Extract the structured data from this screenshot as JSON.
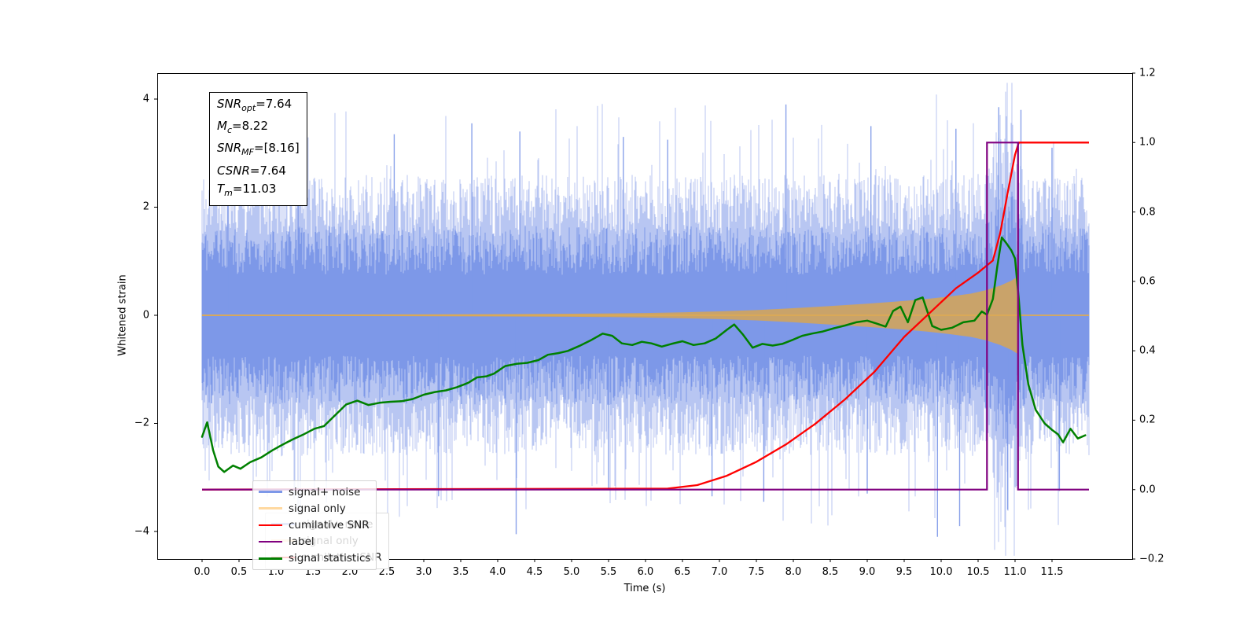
{
  "window": {
    "title": ""
  },
  "chart_data": {
    "type": "line",
    "title": "",
    "xlabel": "Time (s)",
    "ylabel": "Whitened strain",
    "ylabel_right": "",
    "grid": false,
    "xlim": [
      -0.606,
      12.585
    ],
    "ylim_left": [
      -4.51,
      4.48
    ],
    "ylim_right": [
      -0.2,
      1.2
    ],
    "x_ticks": [
      {
        "value": 0.0,
        "label": "0.0"
      },
      {
        "value": 0.5,
        "label": "0.5"
      },
      {
        "value": 1.0,
        "label": "1.0"
      },
      {
        "value": 1.5,
        "label": "1.5"
      },
      {
        "value": 2.0,
        "label": "2.0"
      },
      {
        "value": 2.5,
        "label": "2.5"
      },
      {
        "value": 3.0,
        "label": "3.0"
      },
      {
        "value": 3.5,
        "label": "3.5"
      },
      {
        "value": 4.0,
        "label": "4.0"
      },
      {
        "value": 4.5,
        "label": "4.5"
      },
      {
        "value": 5.0,
        "label": "5.0"
      },
      {
        "value": 5.5,
        "label": "5.5"
      },
      {
        "value": 6.0,
        "label": "6.0"
      },
      {
        "value": 6.5,
        "label": "6.5"
      },
      {
        "value": 7.0,
        "label": "7.0"
      },
      {
        "value": 7.5,
        "label": "7.5"
      },
      {
        "value": 8.0,
        "label": "8.0"
      },
      {
        "value": 8.5,
        "label": "8.5"
      },
      {
        "value": 9.0,
        "label": "9.0"
      },
      {
        "value": 9.5,
        "label": "9.5"
      },
      {
        "value": 10.0,
        "label": "10.0"
      },
      {
        "value": 10.5,
        "label": "10.5"
      },
      {
        "value": 11.0,
        "label": "11.0"
      },
      {
        "value": 11.5,
        "label": "11.5"
      }
    ],
    "yleft_ticks": [
      {
        "value": 4,
        "label": "4"
      },
      {
        "value": 2,
        "label": "2"
      },
      {
        "value": 0,
        "label": "0"
      },
      {
        "value": -2,
        "label": "−2"
      },
      {
        "value": -4,
        "label": "−4"
      }
    ],
    "yright_ticks": [
      {
        "value": 1.2,
        "label": "1.2"
      },
      {
        "value": 1.0,
        "label": "1.0"
      },
      {
        "value": 0.8,
        "label": "0.8"
      },
      {
        "value": 0.6,
        "label": "0.6"
      },
      {
        "value": 0.4,
        "label": "0.4"
      },
      {
        "value": 0.2,
        "label": "0.2"
      },
      {
        "value": 0.0,
        "label": "0.0"
      },
      {
        "value": -0.2,
        "label": "−0.2"
      }
    ],
    "annotation_box": {
      "lines": [
        {
          "var": "SNR",
          "sub": "opt",
          "rest": "=7.64",
          "text": "SNR_opt=7.64"
        },
        {
          "var": "M",
          "sub": "c",
          "rest": "=8.22",
          "text": "M_c=8.22"
        },
        {
          "var": "SNR",
          "sub": "MF",
          "rest": "=[8.16]",
          "text": "SNR_MF=[8.16]"
        },
        {
          "var": "CSNR",
          "sub": "",
          "rest": "=7.64",
          "text": "CSNR=7.64"
        },
        {
          "var": "T",
          "sub": "m",
          "rest": "=11.03",
          "text": "T_m=11.03"
        }
      ]
    },
    "legend": {
      "position": "lower left",
      "entries": [
        {
          "label": "signal+ noise",
          "color": "#7d98e8"
        },
        {
          "label": "signal only",
          "color": "#ffd9a0"
        },
        {
          "label": "cumilative SNR",
          "color": "#ff0000"
        },
        {
          "label": "label",
          "color": "#800080"
        },
        {
          "label": "signal statistics",
          "color": "#008000"
        }
      ]
    },
    "legend_ghost": {
      "note": "second faded legend visible behind main legend",
      "entries": [
        {
          "label": "signal+ noise",
          "color": "#7d98e8"
        },
        {
          "label": "signal only",
          "color": "#ffd9a0"
        },
        {
          "label": "cumilative SNR",
          "color": "#ff0000"
        }
      ]
    },
    "series": {
      "signal_noise": {
        "label": "signal+ noise",
        "axis": "left",
        "color": "#7d98e8",
        "kind": "dense-noise-band",
        "t_range": [
          0,
          12
        ],
        "typical_band": 2.0,
        "seed": 20240613,
        "extreme_spikes": [
          [
            0.35,
            3.1
          ],
          [
            1.3,
            3.2
          ],
          [
            2.6,
            3.35
          ],
          [
            3.2,
            -3.35
          ],
          [
            3.65,
            3.55
          ],
          [
            4.25,
            -4.05
          ],
          [
            4.3,
            3.4
          ],
          [
            5.5,
            -3.2
          ],
          [
            5.7,
            3.3
          ],
          [
            6.3,
            3.25
          ],
          [
            6.9,
            -3.35
          ],
          [
            7.6,
            -3.45
          ],
          [
            7.9,
            3.9
          ],
          [
            9.0,
            -3.3
          ],
          [
            9.05,
            3.5
          ],
          [
            9.95,
            -4.1
          ],
          [
            10.2,
            3.45
          ],
          [
            10.25,
            -3.9
          ],
          [
            10.78,
            3.85
          ],
          [
            10.9,
            -3.6
          ],
          [
            11.08,
            3.8
          ],
          [
            11.5,
            3.1
          ],
          [
            11.6,
            -3.25
          ]
        ]
      },
      "signal_only": {
        "label": "signal only",
        "axis": "left",
        "line_color": "#dpaa55-fix",
        "zero_line_color": "#ddaa55",
        "fill_color": "#c9a36a",
        "legend_color": "#ffd9a0",
        "zero_level": 0.0,
        "cutoff_t": 11.04,
        "end_t": 12.0,
        "envelope": [
          [
            0,
            0.012
          ],
          [
            1,
            0.013
          ],
          [
            2,
            0.015
          ],
          [
            3,
            0.018
          ],
          [
            4,
            0.022
          ],
          [
            5,
            0.028
          ],
          [
            5.5,
            0.034
          ],
          [
            6,
            0.042
          ],
          [
            6.5,
            0.055
          ],
          [
            7,
            0.072
          ],
          [
            7.5,
            0.095
          ],
          [
            8,
            0.13
          ],
          [
            8.5,
            0.17
          ],
          [
            9,
            0.215
          ],
          [
            9.5,
            0.265
          ],
          [
            9.8,
            0.3
          ],
          [
            10.1,
            0.345
          ],
          [
            10.4,
            0.4
          ],
          [
            10.6,
            0.46
          ],
          [
            10.8,
            0.55
          ],
          [
            10.95,
            0.64
          ],
          [
            11.02,
            0.7
          ],
          [
            11.04,
            0.71
          ]
        ]
      },
      "cumulative_snr": {
        "label": "cumilative SNR",
        "axis": "right",
        "color": "#ff0000",
        "points": [
          [
            0,
            0
          ],
          [
            6.3,
            0.003
          ],
          [
            6.7,
            0.013
          ],
          [
            7.1,
            0.04
          ],
          [
            7.5,
            0.08
          ],
          [
            7.9,
            0.13
          ],
          [
            8.3,
            0.19
          ],
          [
            8.7,
            0.26
          ],
          [
            9.1,
            0.34
          ],
          [
            9.5,
            0.44
          ],
          [
            9.9,
            0.52
          ],
          [
            10.2,
            0.58
          ],
          [
            10.5,
            0.625
          ],
          [
            10.7,
            0.66
          ],
          [
            10.8,
            0.74
          ],
          [
            10.9,
            0.855
          ],
          [
            11.0,
            0.965
          ],
          [
            11.05,
            1.0
          ],
          [
            12.0,
            1.0
          ]
        ]
      },
      "label": {
        "label": "label",
        "axis": "right",
        "color": "#800080",
        "points": [
          [
            0,
            0
          ],
          [
            10.62,
            0
          ],
          [
            10.62,
            1
          ],
          [
            11.04,
            1
          ],
          [
            11.04,
            0
          ],
          [
            12,
            0
          ]
        ]
      },
      "signal_statistics": {
        "label": "signal statistics",
        "axis": "left",
        "color": "#008000",
        "points": [
          [
            0.0,
            -2.25
          ],
          [
            0.07,
            -1.98
          ],
          [
            0.15,
            -2.5
          ],
          [
            0.22,
            -2.8
          ],
          [
            0.3,
            -2.9
          ],
          [
            0.42,
            -2.78
          ],
          [
            0.52,
            -2.84
          ],
          [
            0.65,
            -2.72
          ],
          [
            0.8,
            -2.63
          ],
          [
            0.95,
            -2.5
          ],
          [
            1.08,
            -2.4
          ],
          [
            1.22,
            -2.3
          ],
          [
            1.38,
            -2.2
          ],
          [
            1.52,
            -2.1
          ],
          [
            1.65,
            -2.05
          ],
          [
            1.8,
            -1.85
          ],
          [
            1.95,
            -1.65
          ],
          [
            2.1,
            -1.58
          ],
          [
            2.25,
            -1.66
          ],
          [
            2.4,
            -1.62
          ],
          [
            2.55,
            -1.6
          ],
          [
            2.7,
            -1.59
          ],
          [
            2.85,
            -1.55
          ],
          [
            3.0,
            -1.47
          ],
          [
            3.15,
            -1.42
          ],
          [
            3.3,
            -1.39
          ],
          [
            3.45,
            -1.33
          ],
          [
            3.6,
            -1.25
          ],
          [
            3.72,
            -1.15
          ],
          [
            3.85,
            -1.13
          ],
          [
            3.95,
            -1.08
          ],
          [
            4.1,
            -0.94
          ],
          [
            4.25,
            -0.9
          ],
          [
            4.4,
            -0.88
          ],
          [
            4.55,
            -0.83
          ],
          [
            4.68,
            -0.73
          ],
          [
            4.82,
            -0.7
          ],
          [
            4.95,
            -0.66
          ],
          [
            5.1,
            -0.57
          ],
          [
            5.25,
            -0.47
          ],
          [
            5.42,
            -0.34
          ],
          [
            5.55,
            -0.38
          ],
          [
            5.68,
            -0.52
          ],
          [
            5.82,
            -0.55
          ],
          [
            5.95,
            -0.49
          ],
          [
            6.08,
            -0.52
          ],
          [
            6.22,
            -0.58
          ],
          [
            6.35,
            -0.53
          ],
          [
            6.5,
            -0.48
          ],
          [
            6.65,
            -0.55
          ],
          [
            6.8,
            -0.52
          ],
          [
            6.95,
            -0.43
          ],
          [
            7.1,
            -0.27
          ],
          [
            7.2,
            -0.17
          ],
          [
            7.32,
            -0.36
          ],
          [
            7.45,
            -0.6
          ],
          [
            7.58,
            -0.53
          ],
          [
            7.72,
            -0.56
          ],
          [
            7.85,
            -0.53
          ],
          [
            8.0,
            -0.45
          ],
          [
            8.12,
            -0.38
          ],
          [
            8.25,
            -0.34
          ],
          [
            8.4,
            -0.3
          ],
          [
            8.55,
            -0.24
          ],
          [
            8.7,
            -0.19
          ],
          [
            8.85,
            -0.13
          ],
          [
            9.0,
            -0.1
          ],
          [
            9.12,
            -0.15
          ],
          [
            9.25,
            -0.21
          ],
          [
            9.35,
            0.08
          ],
          [
            9.45,
            0.16
          ],
          [
            9.55,
            -0.13
          ],
          [
            9.65,
            0.28
          ],
          [
            9.75,
            0.33
          ],
          [
            9.88,
            -0.2
          ],
          [
            10.0,
            -0.27
          ],
          [
            10.15,
            -0.23
          ],
          [
            10.3,
            -0.13
          ],
          [
            10.45,
            -0.1
          ],
          [
            10.55,
            0.07
          ],
          [
            10.62,
            0.01
          ],
          [
            10.7,
            0.3
          ],
          [
            10.76,
            0.9
          ],
          [
            10.82,
            1.44
          ],
          [
            10.88,
            1.34
          ],
          [
            10.95,
            1.2
          ],
          [
            11.0,
            1.05
          ],
          [
            11.05,
            0.3
          ],
          [
            11.1,
            -0.55
          ],
          [
            11.18,
            -1.28
          ],
          [
            11.28,
            -1.75
          ],
          [
            11.4,
            -2.0
          ],
          [
            11.5,
            -2.12
          ],
          [
            11.58,
            -2.2
          ],
          [
            11.65,
            -2.35
          ],
          [
            11.75,
            -2.1
          ],
          [
            11.85,
            -2.28
          ],
          [
            11.95,
            -2.22
          ]
        ]
      }
    }
  }
}
